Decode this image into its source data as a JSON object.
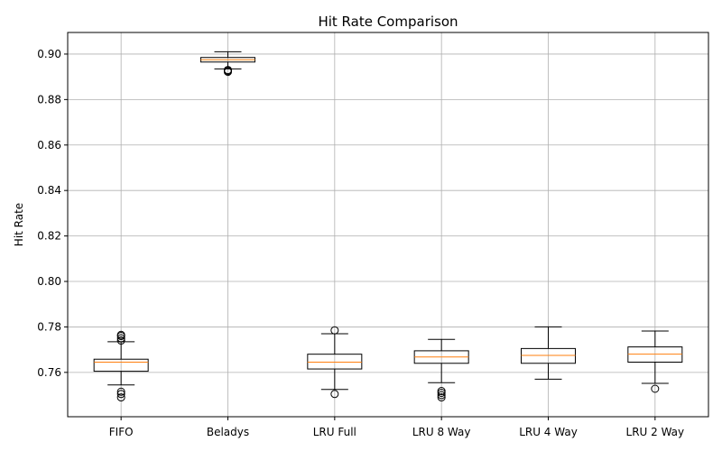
{
  "chart_data": {
    "type": "box",
    "title": "Hit Rate Comparison",
    "xlabel": "",
    "ylabel": "Hit Rate",
    "ylim": [
      0.7405,
      0.9095
    ],
    "yticks": [
      "0.76",
      "0.78",
      "0.80",
      "0.82",
      "0.84",
      "0.86",
      "0.88",
      "0.90"
    ],
    "ytick_values": [
      0.76,
      0.78,
      0.8,
      0.82,
      0.84,
      0.86,
      0.88,
      0.9
    ],
    "grid": true,
    "categories": [
      "FIFO",
      "Beladys",
      "LRU Full",
      "LRU 8 Way",
      "LRU 4 Way",
      "LRU 2 Way"
    ],
    "boxes": [
      {
        "whisker_low": 0.7545,
        "q1": 0.7605,
        "median": 0.7645,
        "q3": 0.7658,
        "whisker_high": 0.7735,
        "outliers": [
          0.749,
          0.7505,
          0.7515,
          0.774,
          0.775,
          0.776,
          0.7765
        ]
      },
      {
        "whisker_low": 0.8935,
        "q1": 0.8965,
        "median": 0.8975,
        "q3": 0.8985,
        "whisker_high": 0.901,
        "outliers": [
          0.8922,
          0.8926,
          0.893
        ]
      },
      {
        "whisker_low": 0.7525,
        "q1": 0.7615,
        "median": 0.7645,
        "q3": 0.768,
        "whisker_high": 0.777,
        "outliers": [
          0.7505,
          0.7785
        ]
      },
      {
        "whisker_low": 0.7555,
        "q1": 0.764,
        "median": 0.7668,
        "q3": 0.7695,
        "whisker_high": 0.7745,
        "outliers": [
          0.749,
          0.75,
          0.751,
          0.7518
        ]
      },
      {
        "whisker_low": 0.757,
        "q1": 0.764,
        "median": 0.7675,
        "q3": 0.7705,
        "whisker_high": 0.78,
        "outliers": []
      },
      {
        "whisker_low": 0.7552,
        "q1": 0.7645,
        "median": 0.768,
        "q3": 0.7712,
        "whisker_high": 0.7782,
        "outliers": [
          0.7528
        ]
      }
    ],
    "colors": {
      "median": "#ff7f0e",
      "box": "#000000",
      "grid": "#b0b0b0"
    }
  }
}
